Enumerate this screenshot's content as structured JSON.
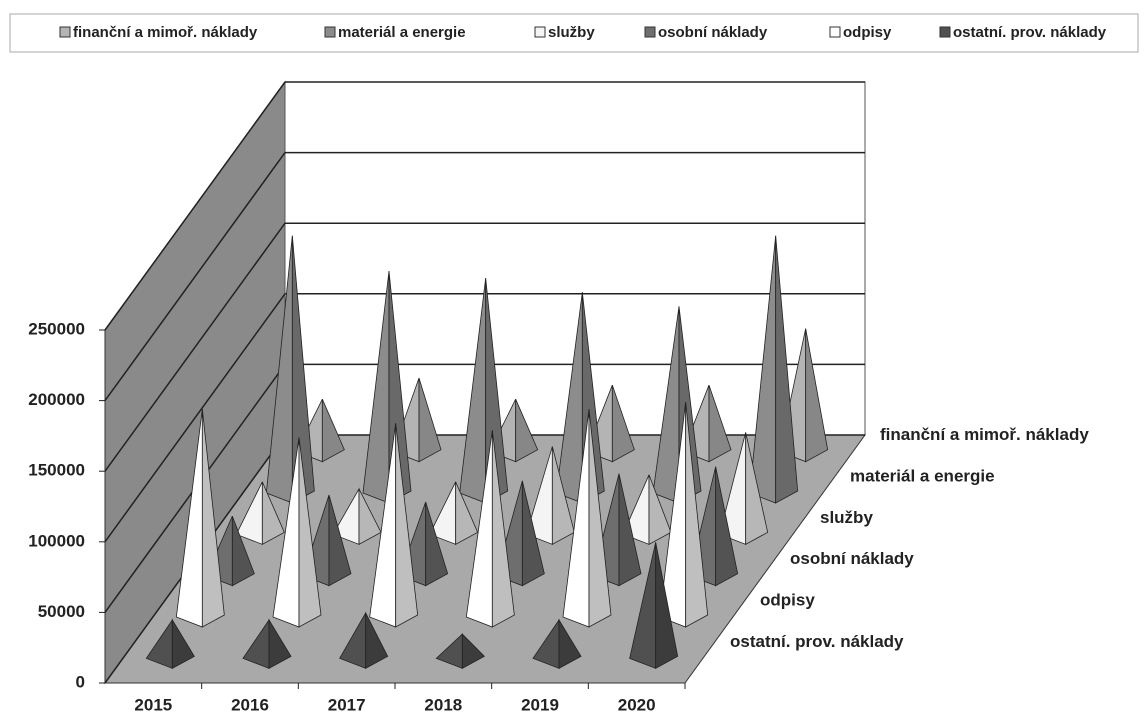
{
  "chart_data": {
    "type": "pyramid3d",
    "categories": [
      "2015",
      "2016",
      "2017",
      "2018",
      "2019",
      "2020"
    ],
    "series": [
      {
        "name": "finanční a mimoř. náklady",
        "color": "#b4b4b4",
        "values": [
          40000,
          55000,
          40000,
          50000,
          50000,
          90000
        ]
      },
      {
        "name": "materiál a energie",
        "color": "#8c8c8c",
        "values": [
          185000,
          160000,
          155000,
          145000,
          135000,
          185000
        ]
      },
      {
        "name": "služby",
        "color": "#f4f4f4",
        "values": [
          40000,
          35000,
          40000,
          65000,
          45000,
          75000
        ]
      },
      {
        "name": "osobní náklady",
        "color": "#6e6e6e",
        "values": [
          45000,
          60000,
          55000,
          70000,
          75000,
          80000
        ]
      },
      {
        "name": "odpisy",
        "color": "#ffffff",
        "values": [
          150000,
          130000,
          140000,
          135000,
          150000,
          155000
        ]
      },
      {
        "name": "ostatní. prov. náklady",
        "color": "#505050",
        "values": [
          30000,
          30000,
          35000,
          20000,
          30000,
          85000
        ]
      }
    ],
    "ylim": [
      0,
      250000
    ],
    "yticks": [
      0,
      50000,
      100000,
      150000,
      200000,
      250000
    ],
    "grid": true,
    "legend": "top"
  }
}
